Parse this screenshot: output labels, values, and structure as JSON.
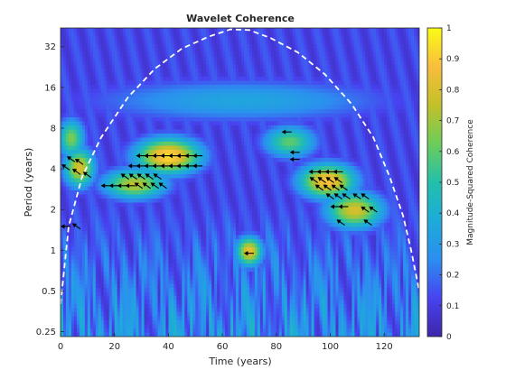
{
  "chart_data": {
    "type": "heatmap",
    "title": "Wavelet Coherence",
    "xlabel": "Time (years)",
    "ylabel": "Period (years)",
    "xlim": [
      0,
      133
    ],
    "x_ticks": [
      0,
      20,
      40,
      60,
      80,
      100,
      120
    ],
    "y_scale": "log2",
    "ylim": [
      0.23,
      44
    ],
    "y_ticks": [
      {
        "value": 0.25,
        "label": "0.25"
      },
      {
        "value": 0.5,
        "label": "0.5"
      },
      {
        "value": 1,
        "label": "1"
      },
      {
        "value": 2,
        "label": "2"
      },
      {
        "value": 4,
        "label": "4"
      },
      {
        "value": 8,
        "label": "8"
      },
      {
        "value": 16,
        "label": "16"
      },
      {
        "value": 32,
        "label": "32"
      }
    ],
    "colorbar": {
      "label": "Magnitude-Squared Coherence",
      "range": [
        0,
        1
      ],
      "ticks": [
        {
          "value": 0,
          "label": "0"
        },
        {
          "value": 0.1,
          "label": "0.1"
        },
        {
          "value": 0.2,
          "label": "0.2"
        },
        {
          "value": 0.3,
          "label": "0.3"
        },
        {
          "value": 0.4,
          "label": "0.4"
        },
        {
          "value": 0.5,
          "label": "0.5"
        },
        {
          "value": 0.6,
          "label": "0.6"
        },
        {
          "value": 0.7,
          "label": "0.7"
        },
        {
          "value": 0.8,
          "label": "0.8"
        },
        {
          "value": 0.9,
          "label": "0.9"
        },
        {
          "value": 1,
          "label": "1"
        }
      ],
      "colormap": [
        "#3e26a8",
        "#4743f0",
        "#2c8ef0",
        "#1dabd9",
        "#24bfab",
        "#6ccd5a",
        "#c2c02a",
        "#f9be3d",
        "#f9fb15"
      ]
    },
    "cone_of_influence": {
      "style": "white dashed",
      "points": [
        [
          0,
          0.4
        ],
        [
          3,
          1.5
        ],
        [
          8,
          3.5
        ],
        [
          15,
          6.8
        ],
        [
          25,
          13.5
        ],
        [
          35,
          22
        ],
        [
          45,
          31
        ],
        [
          55,
          38
        ],
        [
          63,
          43
        ],
        [
          70,
          42.5
        ],
        [
          78,
          37
        ],
        [
          88,
          29
        ],
        [
          98,
          20
        ],
        [
          108,
          12
        ],
        [
          116,
          6.8
        ],
        [
          122,
          3.5
        ],
        [
          127,
          1.8
        ],
        [
          130,
          1
        ],
        [
          133,
          0.5
        ]
      ]
    },
    "high_coherence_regions": [
      {
        "x": [
          27,
          53
        ],
        "y": [
          3.8,
          6.5
        ],
        "coherence": 0.95
      },
      {
        "x": [
          15,
          40
        ],
        "y": [
          2.5,
          3.8
        ],
        "coherence": 0.75
      },
      {
        "x": [
          88,
          110
        ],
        "y": [
          2.5,
          4.2
        ],
        "coherence": 0.9
      },
      {
        "x": [
          98,
          120
        ],
        "y": [
          1.5,
          2.6
        ],
        "coherence": 0.8
      },
      {
        "x": [
          2,
          12
        ],
        "y": [
          3,
          5.5
        ],
        "coherence": 0.8
      },
      {
        "x": [
          75,
          95
        ],
        "y": [
          5,
          8
        ],
        "coherence": 0.6
      },
      {
        "x": [
          0,
          8
        ],
        "y": [
          5,
          9
        ],
        "coherence": 0.65
      },
      {
        "x": [
          66,
          74
        ],
        "y": [
          0.8,
          1.2
        ],
        "coherence": 0.85
      },
      {
        "x": [
          0,
          133
        ],
        "y": [
          9,
          18
        ],
        "coherence": 0.35
      }
    ],
    "phase_arrows": [
      {
        "x": 30,
        "y": 5.0,
        "direction": "left"
      },
      {
        "x": 33,
        "y": 5.0,
        "direction": "left"
      },
      {
        "x": 36,
        "y": 5.0,
        "direction": "left"
      },
      {
        "x": 39,
        "y": 5.0,
        "direction": "left"
      },
      {
        "x": 42,
        "y": 5.0,
        "direction": "left"
      },
      {
        "x": 45,
        "y": 5.0,
        "direction": "left"
      },
      {
        "x": 48,
        "y": 5.0,
        "direction": "left"
      },
      {
        "x": 51,
        "y": 5.0,
        "direction": "left"
      },
      {
        "x": 27,
        "y": 4.2,
        "direction": "left"
      },
      {
        "x": 30,
        "y": 4.2,
        "direction": "left"
      },
      {
        "x": 33,
        "y": 4.2,
        "direction": "left"
      },
      {
        "x": 36,
        "y": 4.2,
        "direction": "left"
      },
      {
        "x": 39,
        "y": 4.2,
        "direction": "left"
      },
      {
        "x": 42,
        "y": 4.2,
        "direction": "left"
      },
      {
        "x": 45,
        "y": 4.2,
        "direction": "left"
      },
      {
        "x": 48,
        "y": 4.2,
        "direction": "left"
      },
      {
        "x": 51,
        "y": 4.2,
        "direction": "left"
      },
      {
        "x": 17,
        "y": 3.0,
        "direction": "left"
      },
      {
        "x": 20,
        "y": 3.0,
        "direction": "left"
      },
      {
        "x": 23,
        "y": 3.0,
        "direction": "left"
      },
      {
        "x": 26,
        "y": 3.0,
        "direction": "left"
      },
      {
        "x": 29,
        "y": 3.0,
        "direction": "up-left"
      },
      {
        "x": 32,
        "y": 3.0,
        "direction": "up-left"
      },
      {
        "x": 35,
        "y": 3.0,
        "direction": "up-left"
      },
      {
        "x": 38,
        "y": 3.0,
        "direction": "up-left"
      },
      {
        "x": 24,
        "y": 3.5,
        "direction": "up-left"
      },
      {
        "x": 27,
        "y": 3.5,
        "direction": "up-left"
      },
      {
        "x": 30,
        "y": 3.5,
        "direction": "up-left"
      },
      {
        "x": 33,
        "y": 3.5,
        "direction": "up-left"
      },
      {
        "x": 36,
        "y": 3.5,
        "direction": "up-left"
      },
      {
        "x": 4,
        "y": 4.7,
        "direction": "up-left"
      },
      {
        "x": 7,
        "y": 4.5,
        "direction": "up-left"
      },
      {
        "x": 2,
        "y": 4.1,
        "direction": "up-left"
      },
      {
        "x": 6,
        "y": 3.8,
        "direction": "up-left"
      },
      {
        "x": 10,
        "y": 3.6,
        "direction": "up-left"
      },
      {
        "x": 2,
        "y": 1.5,
        "direction": "left"
      },
      {
        "x": 6,
        "y": 1.5,
        "direction": "up-left"
      },
      {
        "x": 70,
        "y": 0.95,
        "direction": "right"
      },
      {
        "x": 84,
        "y": 7.5,
        "direction": "left"
      },
      {
        "x": 87,
        "y": 5.3,
        "direction": "left"
      },
      {
        "x": 87,
        "y": 4.7,
        "direction": "left"
      },
      {
        "x": 94,
        "y": 3.8,
        "direction": "left"
      },
      {
        "x": 97,
        "y": 3.8,
        "direction": "left"
      },
      {
        "x": 100,
        "y": 3.8,
        "direction": "left"
      },
      {
        "x": 103,
        "y": 3.8,
        "direction": "left"
      },
      {
        "x": 94,
        "y": 3.3,
        "direction": "up-left"
      },
      {
        "x": 97,
        "y": 3.3,
        "direction": "up-left"
      },
      {
        "x": 100,
        "y": 3.3,
        "direction": "up-left"
      },
      {
        "x": 103,
        "y": 3.3,
        "direction": "up-left"
      },
      {
        "x": 96,
        "y": 2.9,
        "direction": "up-left"
      },
      {
        "x": 99,
        "y": 2.9,
        "direction": "up-left"
      },
      {
        "x": 102,
        "y": 2.9,
        "direction": "up-left"
      },
      {
        "x": 105,
        "y": 2.9,
        "direction": "up-left"
      },
      {
        "x": 100,
        "y": 2.5,
        "direction": "up-left"
      },
      {
        "x": 103,
        "y": 2.5,
        "direction": "up-left"
      },
      {
        "x": 106,
        "y": 2.5,
        "direction": "up-left"
      },
      {
        "x": 110,
        "y": 2.5,
        "direction": "up-left"
      },
      {
        "x": 113,
        "y": 2.5,
        "direction": "up-left"
      },
      {
        "x": 102,
        "y": 2.1,
        "direction": "left"
      },
      {
        "x": 105,
        "y": 2.1,
        "direction": "left"
      },
      {
        "x": 113,
        "y": 2.0,
        "direction": "up-left"
      },
      {
        "x": 116,
        "y": 2.0,
        "direction": "up-left"
      },
      {
        "x": 104,
        "y": 1.6,
        "direction": "up-left"
      },
      {
        "x": 114,
        "y": 1.6,
        "direction": "up-left"
      }
    ]
  }
}
